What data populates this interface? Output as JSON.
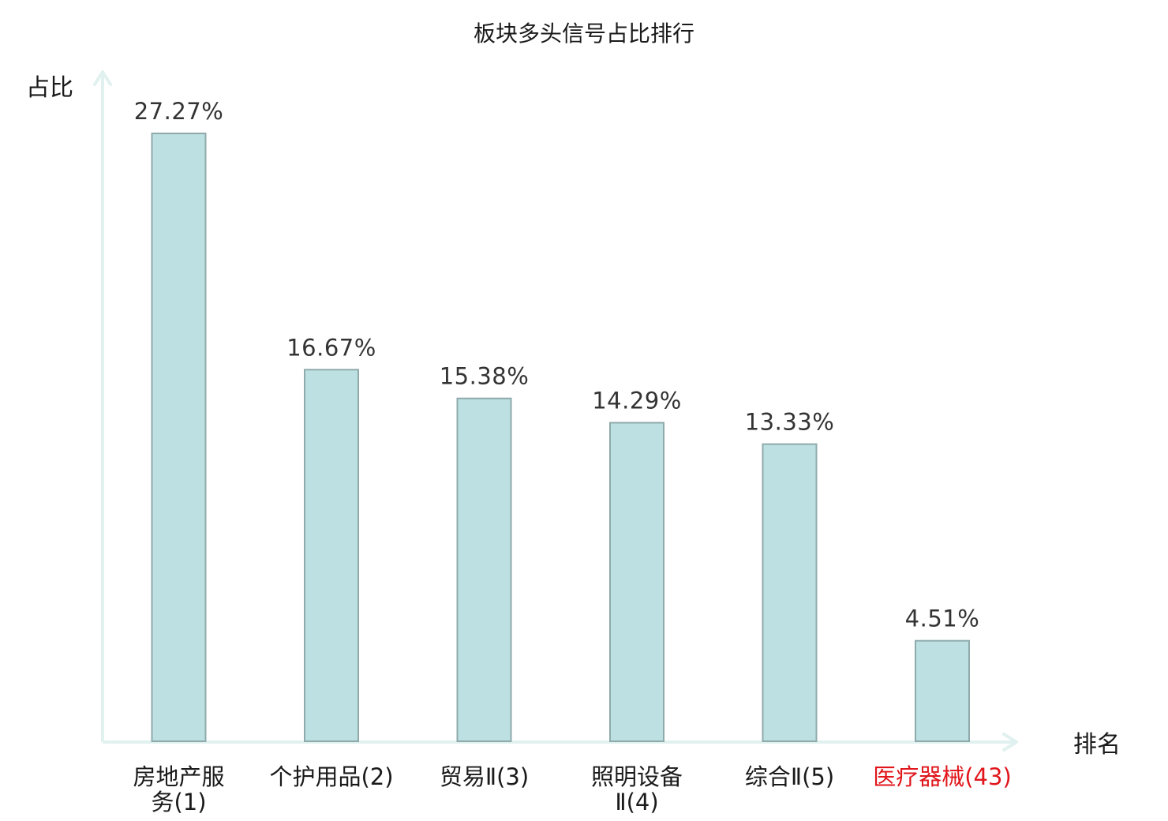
{
  "chart_data": {
    "type": "bar",
    "title": "板块多头信号占比排行",
    "ylabel": "占比",
    "xlabel": "排名",
    "ylim": [
      0,
      30
    ],
    "grid": false,
    "legend": "none",
    "categories": [
      {
        "name": "房地产服务",
        "rank": "(1)",
        "lines": [
          "房地产服",
          "务(1)"
        ],
        "highlight": false
      },
      {
        "name": "个护用品",
        "rank": "(2)",
        "lines": [
          "个护用品(2)"
        ],
        "highlight": false
      },
      {
        "name": "贸易Ⅱ",
        "rank": "(3)",
        "lines": [
          "贸易Ⅱ(3)"
        ],
        "highlight": false
      },
      {
        "name": "照明设备Ⅱ",
        "rank": "(4)",
        "lines": [
          "照明设备",
          "Ⅱ(4)"
        ],
        "highlight": false
      },
      {
        "name": "综合Ⅱ",
        "rank": "(5)",
        "lines": [
          "综合Ⅱ(5)"
        ],
        "highlight": false
      },
      {
        "name": "医疗器械",
        "rank": "(43)",
        "lines": [
          "医疗器械(43)"
        ],
        "highlight": true
      }
    ],
    "values": [
      27.27,
      16.67,
      15.38,
      14.29,
      13.33,
      4.51
    ],
    "value_labels": [
      "27.27%",
      "16.67%",
      "15.38%",
      "14.29%",
      "13.33%",
      "4.51%"
    ],
    "colors": {
      "bar_fill": "#bde0e3",
      "bar_stroke": "#8faaab",
      "axis": "#e0f1ef",
      "text": "#1a1a1a",
      "highlight": "#e0161b"
    }
  }
}
